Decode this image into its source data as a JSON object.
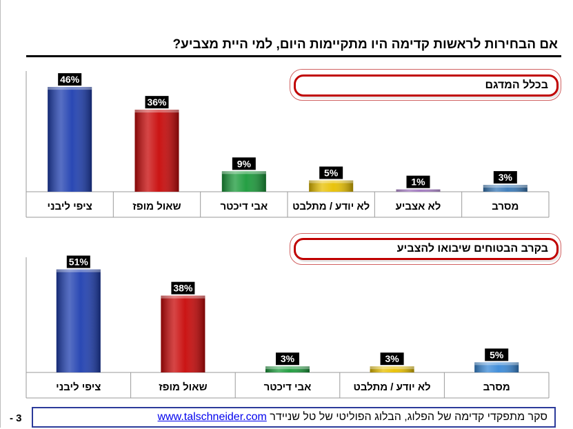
{
  "title": "אם הבחירות לראשות קדימה היו מתקיימות היום, למי היית מצביע?",
  "chart_data": [
    {
      "type": "bar",
      "title": "בכלל המדגם",
      "categories": [
        "ציפי ליבני",
        "שאול מופז",
        "אבי דיכטר",
        "לא יודע / מתלבט",
        "לא אצביע",
        "מסרב"
      ],
      "values": [
        46,
        36,
        9,
        5,
        1,
        3
      ],
      "value_labels": [
        "46%",
        "36%",
        "9%",
        "5%",
        "1%",
        "3%"
      ],
      "colors": [
        "#1f3fb0",
        "#c80808",
        "#1a9a3a",
        "#e8c000",
        "#6a2a9a",
        "#3a7ab8"
      ],
      "unit": "%",
      "grid": false,
      "legend": "none"
    },
    {
      "type": "bar",
      "title": "בקרב הבטוחים שיבואו להצביע",
      "categories": [
        "ציפי ליבני",
        "שאול מופז",
        "אבי דיכטר",
        "לא יודע / מתלבט",
        "מסרב"
      ],
      "values": [
        51,
        38,
        3,
        3,
        5
      ],
      "value_labels": [
        "51%",
        "38%",
        "3%",
        "3%",
        "5%"
      ],
      "colors": [
        "#1f3fb0",
        "#c80808",
        "#1a9a3a",
        "#e8c000",
        "#3a8ad8"
      ],
      "unit": "%",
      "grid": false,
      "legend": "none"
    }
  ],
  "footer": {
    "text": "סקר מתפקדי קדימה של הפלוג, הבלוג הפוליטי של טל שניידר",
    "link": "www.talschneider.com"
  },
  "page_number": "- 3"
}
